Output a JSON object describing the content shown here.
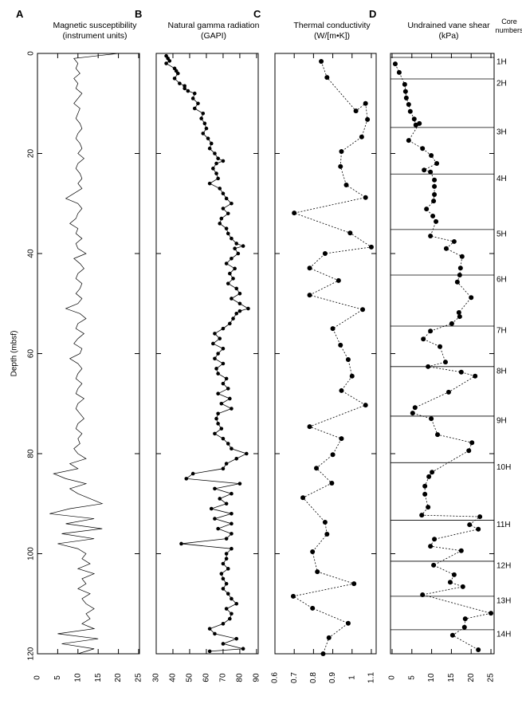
{
  "chart_data": [
    {
      "type": "line",
      "panel": "A",
      "title": "Magnetic susceptibility",
      "subtitle": "(instrument units)",
      "ylabel": "Depth (mbsf)",
      "ytick_labels": true,
      "color": "#000000",
      "line_style": "solid",
      "markers": false,
      "depth": [
        0,
        1,
        2,
        3,
        4,
        5,
        6,
        7,
        8,
        9,
        10,
        11,
        12,
        13,
        14,
        15,
        16,
        17,
        18,
        19,
        20,
        21,
        22,
        23,
        24,
        25,
        26,
        27,
        28,
        29,
        30,
        31,
        32,
        33,
        34,
        35,
        36,
        37,
        38,
        39,
        40,
        41,
        42,
        43,
        44,
        45,
        46,
        47,
        48,
        49,
        50,
        51,
        52,
        53,
        54,
        55,
        56,
        57,
        58,
        59,
        60,
        61,
        62,
        63,
        64,
        65,
        66,
        67,
        68,
        69,
        70,
        71,
        72,
        73,
        74,
        75,
        76,
        77,
        78,
        79,
        80,
        81,
        82,
        83,
        84,
        85,
        86,
        87,
        88,
        89,
        90,
        91,
        92,
        93,
        94,
        95,
        96,
        97,
        98,
        99,
        100,
        101,
        102,
        103,
        104,
        105,
        106,
        107,
        108,
        109,
        110,
        111,
        112,
        113,
        114,
        115,
        116,
        117,
        118,
        119,
        120
      ],
      "values": [
        20,
        9,
        10,
        9.5,
        10.5,
        9,
        10,
        9.5,
        11,
        10,
        9,
        10.5,
        10,
        9.5,
        10.5,
        11,
        10,
        9.5,
        10.5,
        11,
        10,
        11.5,
        10,
        9.5,
        10.5,
        11,
        10,
        11,
        9,
        7,
        10,
        11,
        10,
        9.5,
        8,
        10,
        9.5,
        11,
        9.5,
        10,
        12,
        9,
        10.5,
        11.5,
        10,
        9.5,
        11,
        10.5,
        9.5,
        11,
        10,
        7,
        10.5,
        12,
        10,
        9.5,
        11.5,
        10,
        9,
        11,
        10.5,
        8,
        10,
        11,
        10,
        9.5,
        11,
        10,
        9.5,
        11.5,
        10,
        9.5,
        10.5,
        11.5,
        10,
        9.5,
        11,
        10,
        10.5,
        9,
        10,
        12,
        8,
        10,
        4,
        7,
        12,
        8,
        10,
        13,
        16,
        8,
        3,
        14,
        7,
        16,
        6,
        14,
        5,
        10,
        12,
        11,
        13,
        10,
        14,
        11,
        12,
        10,
        13,
        11,
        12,
        14,
        12,
        13,
        11,
        14,
        5,
        15,
        6,
        14,
        10
      ],
      "xlim": [
        0,
        25.2
      ],
      "xticks": [
        0,
        5,
        10,
        15,
        20,
        25
      ],
      "ylim": [
        0,
        120
      ],
      "yticks": [
        0,
        20,
        40,
        60,
        80,
        100,
        120
      ]
    },
    {
      "type": "line",
      "panel": "B",
      "title": "Natural gamma radiation",
      "subtitle": "(GAPI)",
      "ytick_labels": false,
      "color": "#000000",
      "line_style": "solid",
      "markers": true,
      "depth": [
        0.5,
        1,
        1.5,
        2,
        3,
        3.5,
        4,
        5,
        6,
        6.5,
        7,
        7.5,
        8,
        9,
        10,
        11,
        12,
        13,
        14,
        15,
        16,
        17,
        18,
        19,
        20,
        21,
        21.5,
        22,
        23,
        24,
        25,
        26,
        27,
        28,
        29,
        30,
        31,
        32,
        33,
        34,
        35,
        36,
        37,
        38,
        38.5,
        39,
        40,
        41,
        42,
        43,
        44,
        45,
        46,
        47,
        48,
        49,
        50,
        51,
        51.5,
        52,
        53,
        54,
        55,
        56,
        57,
        58,
        59,
        60,
        61,
        62,
        63,
        64,
        65,
        66,
        67,
        68,
        69,
        70,
        71,
        72,
        73,
        74,
        75,
        76,
        77,
        78,
        79,
        80,
        81,
        82,
        83,
        84,
        85,
        86,
        87,
        88,
        89,
        90,
        91,
        92,
        93,
        94,
        95,
        96,
        97,
        98,
        99,
        100,
        101,
        102,
        103,
        104,
        105,
        106,
        107,
        108,
        109,
        110,
        111,
        112,
        113,
        114,
        115,
        116,
        117,
        118,
        119,
        119.5
      ],
      "values": [
        36,
        37,
        38,
        36,
        41,
        42,
        43,
        41,
        44,
        47,
        47,
        49,
        53,
        52,
        55,
        53,
        58,
        57,
        59,
        60,
        58,
        61,
        63,
        62,
        65,
        67,
        70,
        66,
        64,
        66,
        67,
        62,
        68,
        70,
        72,
        75,
        70,
        73,
        69,
        68,
        72,
        73,
        75,
        78,
        82,
        77,
        79,
        75,
        72,
        77,
        74,
        76,
        73,
        78,
        80,
        75,
        80,
        85,
        80,
        78,
        76,
        74,
        70,
        65,
        68,
        64,
        70,
        67,
        65,
        70,
        66,
        67,
        72,
        70,
        73,
        67,
        74,
        69,
        75,
        67,
        66,
        67,
        69,
        65,
        70,
        73,
        75,
        84,
        78,
        72,
        70,
        52,
        48,
        80,
        65,
        75,
        68,
        72,
        63,
        75,
        65,
        75,
        67,
        75,
        72,
        45,
        75,
        72,
        72,
        70,
        73,
        69,
        70,
        72,
        70,
        73,
        75,
        78,
        72,
        75,
        74,
        70,
        62,
        65,
        78,
        70,
        82,
        62
      ],
      "xlim": [
        30,
        91
      ],
      "xticks": [
        30,
        40,
        50,
        60,
        70,
        80,
        90
      ],
      "ylim": [
        0,
        120
      ],
      "yticks": [
        0,
        20,
        40,
        60,
        80,
        100,
        120
      ]
    },
    {
      "type": "line",
      "panel": "C",
      "title": "Thermal conductivity",
      "subtitle": "(W/[m•K])",
      "ytick_labels": false,
      "color": "#000000",
      "line_style": "dashed",
      "markers": true,
      "depth": [
        1.6,
        4.8,
        11.5,
        10.0,
        13.2,
        16.7,
        19.6,
        22.6,
        26.3,
        28.8,
        31.9,
        35.9,
        38.7,
        40.0,
        42.9,
        45.4,
        48.3,
        51.2,
        55.0,
        58.3,
        61.2,
        64.5,
        67.4,
        70.3,
        74.6,
        77.0,
        80.2,
        82.9,
        85.9,
        88.8,
        93.7,
        96.1,
        99.6,
        103.6,
        106.0,
        108.5,
        110.9,
        113.9,
        116.8,
        120
      ],
      "values": [
        0.84,
        0.87,
        1.02,
        1.07,
        1.08,
        1.05,
        0.945,
        0.94,
        0.97,
        1.07,
        0.7,
        0.99,
        1.1,
        0.86,
        0.78,
        0.93,
        0.78,
        1.055,
        0.9,
        0.94,
        0.98,
        1.0,
        0.945,
        1.07,
        0.78,
        0.945,
        0.9,
        0.815,
        0.895,
        0.745,
        0.86,
        0.87,
        0.795,
        0.82,
        1.01,
        0.695,
        0.795,
        0.98,
        0.88,
        0.85
      ],
      "xlim": [
        0.6,
        1.125
      ],
      "xticks": [
        0.6,
        0.7,
        0.8,
        0.9,
        1,
        1.1
      ],
      "ylim": [
        0,
        120
      ],
      "yticks": [
        0,
        20,
        40,
        60,
        80,
        100,
        120
      ]
    },
    {
      "type": "line",
      "panel": "D",
      "title": "Undrained vane shear",
      "subtitle": "(kPa)",
      "ytick_labels": false,
      "color": "#000000",
      "line_style": "dashed",
      "markers": true,
      "depth": [
        2.1,
        3.8,
        6.2,
        7.6,
        8.9,
        10.2,
        11.6,
        13.1,
        14.3,
        14.0,
        17.4,
        19.0,
        20.4,
        22.0,
        23.3,
        23.7,
        25.3,
        26.6,
        28.2,
        29.5,
        31.1,
        32.5,
        33.6,
        36.5,
        37.6,
        39.0,
        40.6,
        42.9,
        44.3,
        45.7,
        48.8,
        51.8,
        52.6,
        54.0,
        55.5,
        57.1,
        58.6,
        61.7,
        62.6,
        63.7,
        64.5,
        67.7,
        70.8,
        71.9,
        73.0,
        76.2,
        77.8,
        79.4,
        83.7,
        84.6,
        86.5,
        88.1,
        90.7,
        92.3,
        92.6,
        94.2,
        95.1,
        97.1,
        98.5,
        99.4,
        102.3,
        104.2,
        105.7,
        106.6,
        108.2,
        111.9,
        113.0,
        114.7,
        116.3,
        119.2
      ],
      "values": [
        0.8,
        1.8,
        3.2,
        3.4,
        3.6,
        4.2,
        4.6,
        5.6,
        6.0,
        6.9,
        4.2,
        7.7,
        9.9,
        11.3,
        8.1,
        9.7,
        10.7,
        10.7,
        10.7,
        10.5,
        8.7,
        10.3,
        11.1,
        9.7,
        15.7,
        13.7,
        17.7,
        17.3,
        17.1,
        16.5,
        20.0,
        16.9,
        17.1,
        15.1,
        9.7,
        7.9,
        12.1,
        13.5,
        9.1,
        17.5,
        21.0,
        14.3,
        5.8,
        5.2,
        9.9,
        11.5,
        20.2,
        19.4,
        10.1,
        9.3,
        8.3,
        8.3,
        9.1,
        7.5,
        22.2,
        19.6,
        21.8,
        10.7,
        9.7,
        17.5,
        10.5,
        15.7,
        14.7,
        17.9,
        7.7,
        25.0,
        18.5,
        18.3,
        15.3,
        21.8
      ],
      "xlim": [
        -0.4,
        25.8
      ],
      "xticks": [
        0,
        5,
        10,
        15,
        20,
        25
      ],
      "ylim": [
        0,
        120
      ],
      "yticks": [
        0,
        20,
        40,
        60,
        80,
        100,
        120
      ],
      "core_header": [
        "Core",
        "numbers"
      ],
      "core_tops": [
        0.8,
        5.1,
        14.8,
        24.1,
        35.2,
        44.3,
        54.5,
        62.6,
        72.5,
        81.8,
        93.3,
        101.5,
        108.5,
        115.2
      ],
      "core_names": [
        "1H",
        "2H",
        "3H",
        "4H",
        "5H",
        "6H",
        "7H",
        "8H",
        "9H",
        "10H",
        "11H",
        "12H",
        "13H",
        "14H"
      ]
    }
  ]
}
